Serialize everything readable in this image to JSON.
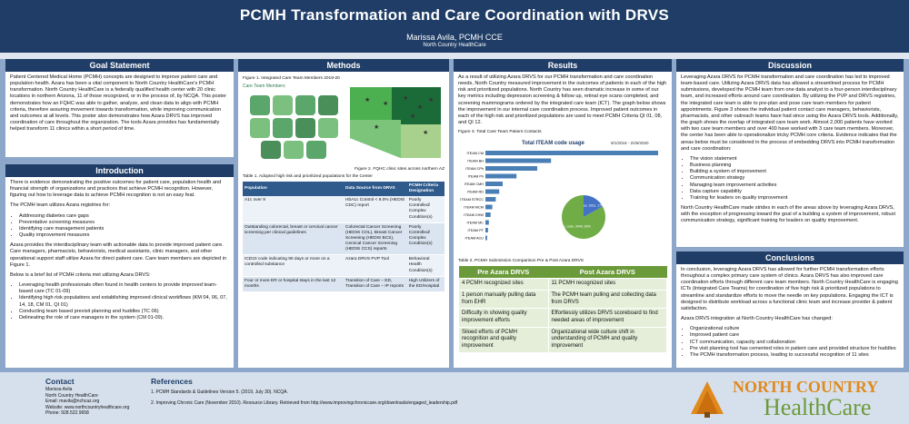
{
  "header": {
    "title": "PCMH Transformation and Care Coordination with DRVS",
    "author": "Marissa Avila, PCMH CCE",
    "org": "North Country HealthCare"
  },
  "goal": {
    "heading": "Goal Statement",
    "text": "Patient Centered Medical Home (PCMH) concepts are designed to improve patient care and population health. Azara has been a vital component to North Country HealthCare's PCMH transformation. North Country HealthCare is a federally qualified health center with 20 clinic locations in northern Arizona, 11 of those recognized, or in the process of, by NCQA. This poster demonstrates how an FQHC was able to gather, analyze, and clean data to align with PCMH criteria, therefore assuring movement towards transformation, while improving communication and outcomes at all levels. This poster also demonstrates how Azara DRVS has improved coordination of care throughout the organization. The tools Azara provides has fundamentally helped transform 11 clinics within a short period of time."
  },
  "intro": {
    "heading": "Introduction",
    "p1": "There is evidence demonstrating the positive outcomes for patient care, population health and financial strength of organizations and practices that achieve PCMH recognition. However, figuring out how to leverage data to achieve PCMH recognition is not an easy feat.",
    "p2": "The PCMH team utilizes Azara registries for:",
    "list1": [
      "Addressing diabetes care gaps",
      "Preventative screening measures",
      "Identifying care management patients",
      "Quality improvement measures"
    ],
    "p3": "Azara provides the interdisciplinary team with actionable data to provide improved patient care. Care managers, pharmacists, behaviorists, medical assistants, clinic managers, and other operational support staff utilize Azara for direct patient care. Care team members are depicted in Figure 1.",
    "p4": "Below is a brief list of PCMH criteria met utilizing Azara DRVS:",
    "list2": [
      "Leveraging health professionals often found in health centers to provide improved team-based care (TC 01-09)",
      "Identifying high risk populations and establishing improved clinical workflows (KM 04, 06, 07, 14, 18, CM 01, QI 01)",
      "Conducting team based previsit planning and huddles (TC 06)",
      "Delineating the role of care managers in the system (CM 01-09)."
    ]
  },
  "methods": {
    "heading": "Methods",
    "fig1_caption": "Figure 1. Integrated Care Team Members 2019-20",
    "fig1_title": "Care Team Members",
    "fig2_caption": "Figure 2. FQHC clinic sites across northern AZ",
    "table1_caption": "Table 1. Adopted high risk and prioritized populations for the Center",
    "table_headers": [
      "Population",
      "Data Source from DRVS",
      "PCMH Criteria Designation"
    ],
    "table_rows": [
      [
        "A1c over 9",
        "HbA1c Control < 9.0% (HEDIS CDC) report",
        "Poorly Controlled/ Complex Condition(s)"
      ],
      [
        "Outstanding colorectal, breast or cervical cancer screening per clinical guidelines",
        "Colorectal Cancer Screening (HEDIS COL), Breast Cancer Screening (HEDIS BCS), Cervical Cancer Screening (HEDIS CCS) reports",
        "Poorly Controlled/ Complex Condition(s)"
      ],
      [
        "ICD10 code indicating 90 days or more on a controlled substance",
        "Azara DRVS PVP Tool",
        "Behavioral Health Condition(s)"
      ],
      [
        "Four or more ER or hospital stays in the last 12 months",
        "Transition of Care – ED, Transition of Care – IP reports",
        "High Utilizers of the ED/Hospital"
      ]
    ]
  },
  "results": {
    "heading": "Results",
    "text": "As a result of utilizing Azara DRVS for our PCMH transformation and care coordination needs, North Country measured improvement in the outcomes of patients in each of the high risk and prioritized populations. North Country has seen dramatic increase in some of our key metrics including depression screening & follow up, retinal eye scans completed, and screening mammograms ordered by the integrated care team (ICT). The graph below shows the improvement in our internal care coordination process. Improved patient outcomes in each of the high risk and prioritized populations are used to meet PCMH Criteria QI 01, 08, and QI 12.",
    "fig3_caption": "Figure 3. Total Care Team Patient Contacts",
    "fig3_title": "Total ITEAM code usage",
    "fig3_date": "9/1/2018 - 2/25/2020",
    "table2_caption": "Table 2. PCMH Submission Comparison Pre & Post Azara DRVS",
    "cmp_headers": [
      "Pre Azara DRVS",
      "Post Azara DRVS"
    ],
    "cmp_rows": [
      [
        "4 PCMH recognized sites",
        "11 PCMH recognized sites"
      ],
      [
        "1 person manually pulling data from EHR",
        "The PCMH team pulling and collecting data from DRVS"
      ],
      [
        "Difficulty in showing quality improvement efforts",
        "Effortlessly utilizes DRVS scoreboard to find needed areas of improvement"
      ],
      [
        "Siloed efforts of PCMH recognition and quality improvement",
        "Organizational wide culture shift in understanding of PCMH and quality improvement"
      ]
    ]
  },
  "chart_data": {
    "type": "bar",
    "title": "Total ITEAM code usage",
    "categories": [
      "ITEAM CM",
      "ITEAM BH",
      "ITEAM CPh",
      "ITEAM Ph",
      "ITEAM CMH",
      "ITEAM RD",
      "ITEAM STRCC",
      "ITEAM MCM",
      "ITEAM CHW",
      "ITEAM MC",
      "ITEAM PT",
      "ITEAM ACU"
    ],
    "values": [
      1000,
      380,
      300,
      180,
      100,
      80,
      60,
      40,
      30,
      20,
      15,
      10
    ],
    "pie_values": [
      17,
      83
    ],
    "pie_labels": [
      "2 codes, 1931, 17%",
      "1 code, 9440, 83%"
    ]
  },
  "discussion": {
    "heading": "Discussion",
    "p1": "Leveraging Azara DRVS for PCMH transformation and care coordination has led to improved team-based care. Utilizing Azara DRVS data has allowed a streamlined process for PCMH submissions, developed the PCMH team from one data analyst to a four-person interdisciplinary team, and increased efforts around care coordination. By utilizing the PVP and DRVS registries, the integrated care team is able to pre-plan and pose care team members for patient appointments. Figure 3 shows the individual patient contact care managers, behaviorists, pharmacists, and other outreach teams have had since using the Azara DRVS tools. Additionally, the graph shows the overlap of integrated care team work. Almost 2,000 patients have worked with two care team members and over 400 have worked with 3 care team members. Moreover, the center has been able to operationalize tricky PCMH core criteria. Evidence indicates that the areas below must be considered in the process of embedding DRVS into PCMH transformation and care coordination:",
    "list": [
      "The vision statement",
      "Business planning",
      "Building a system of improvement",
      "Communication strategy",
      "Managing team improvement activities",
      "Data capture capability",
      "Training for leaders on quality improvement"
    ],
    "p2": "North Country HealthCare made strides in each of the areas above by leveraging Azara DRVS, with the exception of progressing toward the goal of a building a system of improvement, robust communication strategy, significant training for leaders on quality improvement."
  },
  "conclusions": {
    "heading": "Conclusions",
    "p1": "In conclusion, leveraging Azara DRVS has allowed for further PCMH transformation efforts throughout a complex primary care system of clinics. Azara DRVS has also improved care coordination efforts through different care team members. North Country HealthCare is engaging ICTs (Integrated Care Teams) for coordination of five high risk & prioritized populations to streamline and standardize efforts to move the needle on key populations. Engaging the ICT is designed to distribute workload across a functional clinic team and increase provider & patient satisfaction.",
    "p2": "Azara DRVS integration at North Country HealthCare has changed:",
    "list": [
      "Organizational culture",
      "Improved patient care",
      "ICT communication, capacity and collaboration",
      "Pre visit planning tool has cemented roles in patient care and provided structure for huddles",
      "The PCMH transformation process, leading to successful recognition of 11 sites"
    ]
  },
  "contact": {
    "heading": "Contact",
    "lines": [
      "Marissa Avila",
      "North Country HealthCare",
      "Email: mavila@nchcaz.org",
      "Website: www.northcountryhealthcare.org",
      "Phone: 928.522.9658"
    ]
  },
  "references": {
    "heading": "References",
    "items": [
      "1.   PCMH Standards & Guidelines Version 5. (2019, July 30). NCQA.",
      "2.   Improving Chronic Care (November 2010). Resource Library. Retrieved from http://www.improvingchroniccare.org/downloads/engaged_leadership.pdf"
    ]
  },
  "logo": {
    "line1": "NORTH COUNTRY",
    "line2": "HealthCare"
  },
  "colors": {
    "navy": "#1f3d66",
    "green": "#6b9a3a",
    "orange": "#e08a1e"
  }
}
